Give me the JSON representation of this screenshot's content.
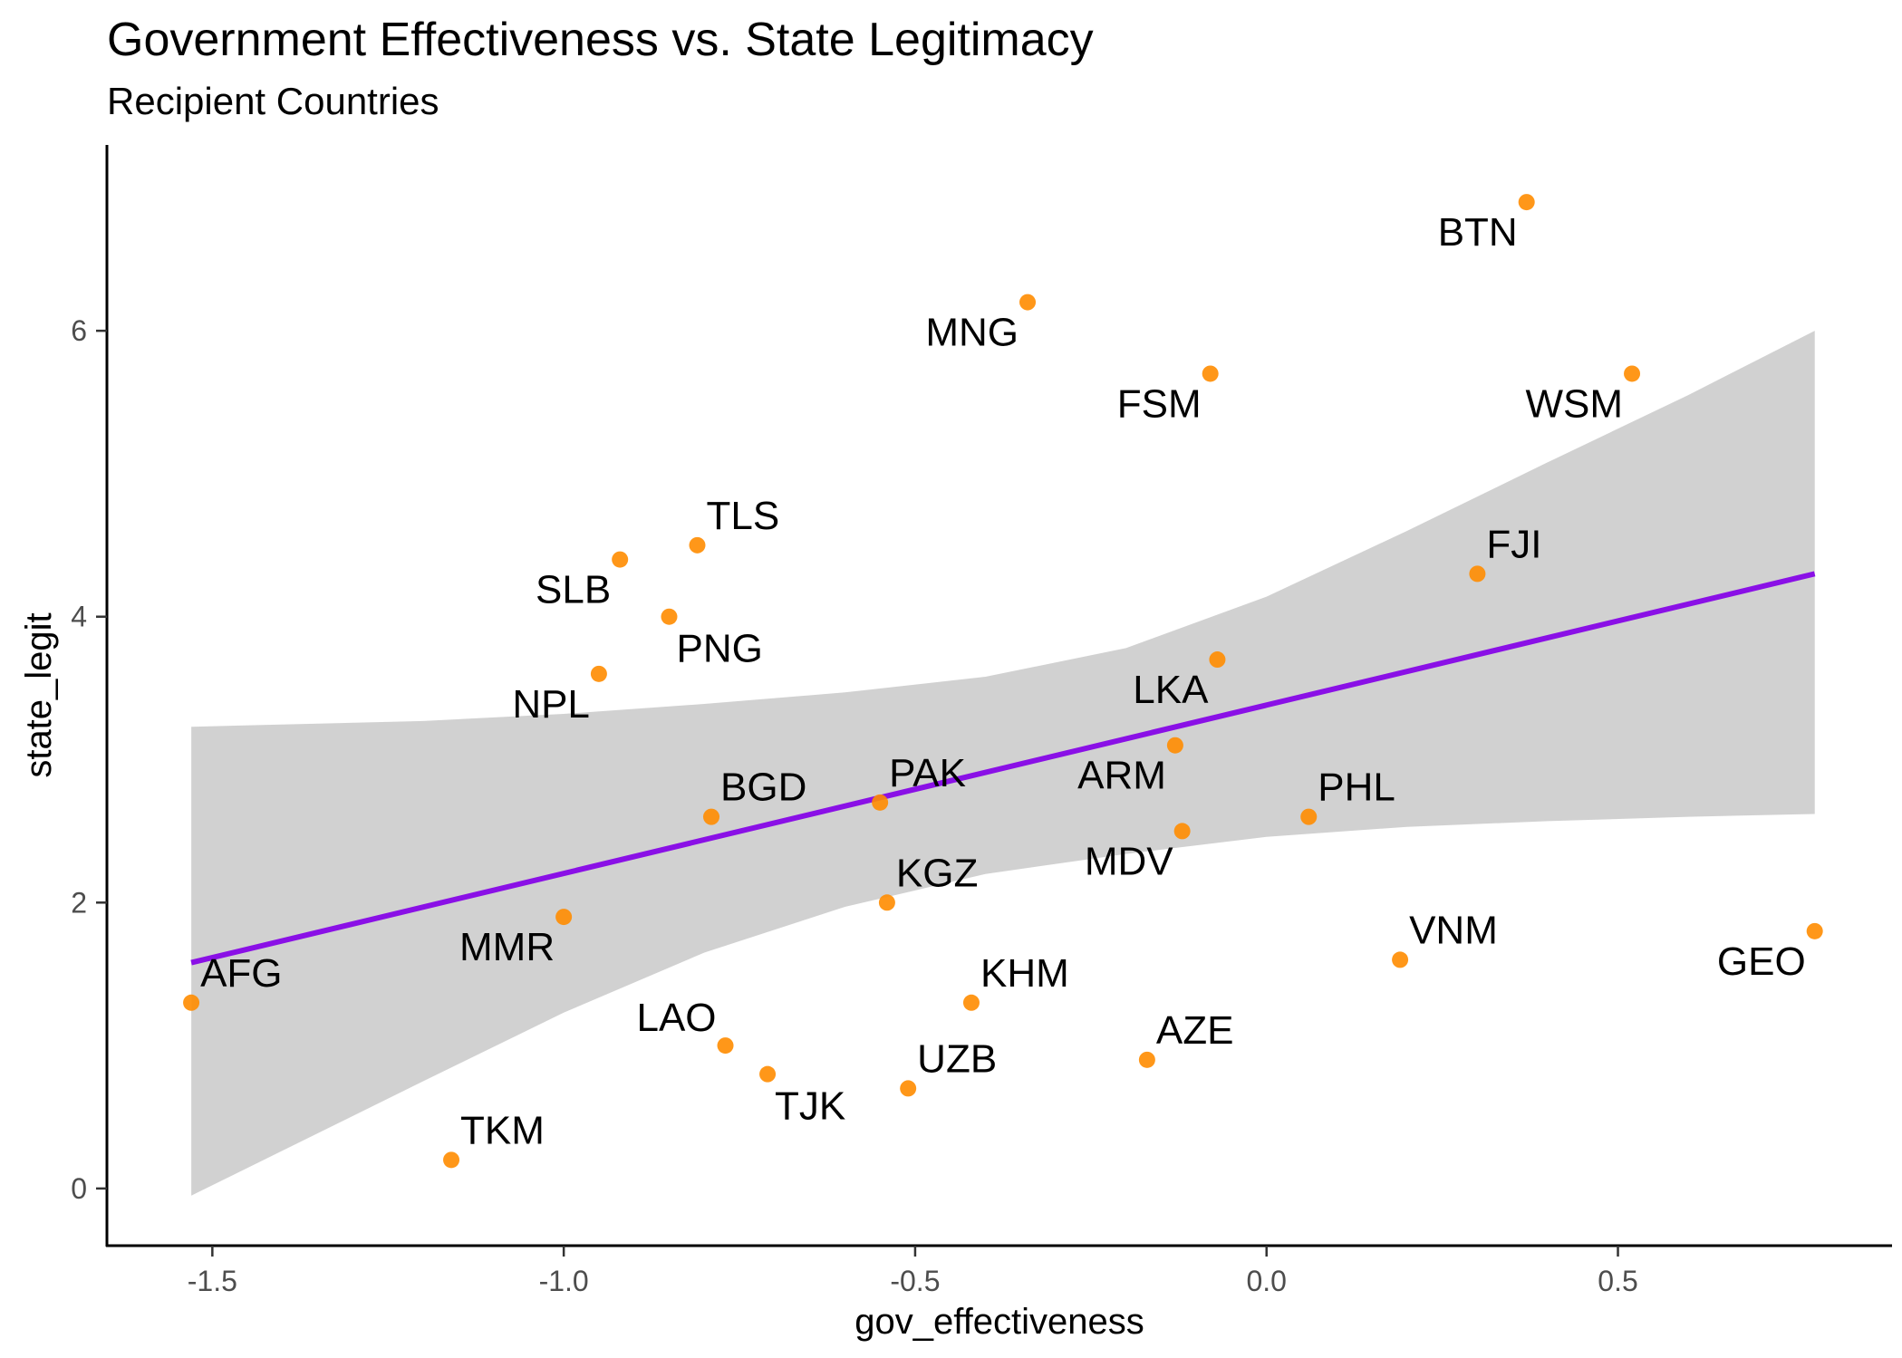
{
  "chart_data": {
    "type": "scatter",
    "title": "Government Effectiveness vs. State Legitimacy",
    "subtitle": "Recipient Countries",
    "xlabel": "gov_effectiveness",
    "ylabel": "state_legit",
    "xlim": [
      -1.65,
      0.89
    ],
    "ylim": [
      -0.4,
      7.3
    ],
    "x_ticks": [
      -1.5,
      -1.0,
      -0.5,
      0.0,
      0.5
    ],
    "x_tick_labels": [
      "-1.5",
      "-1.0",
      "-0.5",
      "0.0",
      "0.5"
    ],
    "y_ticks": [
      0,
      2,
      4,
      6
    ],
    "y_tick_labels": [
      "0",
      "2",
      "4",
      "6"
    ],
    "grid": false,
    "point_color": "#FF8C00",
    "fit_color": "#8A10E6",
    "band_color": "#BEBEBE",
    "points": [
      {
        "label": "BTN",
        "x": 0.37,
        "y": 6.9,
        "pos": "bl"
      },
      {
        "label": "MNG",
        "x": -0.34,
        "y": 6.2,
        "pos": "bl"
      },
      {
        "label": "FSM",
        "x": -0.08,
        "y": 5.7,
        "pos": "bl"
      },
      {
        "label": "WSM",
        "x": 0.52,
        "y": 5.7,
        "pos": "bl"
      },
      {
        "label": "TLS",
        "x": -0.81,
        "y": 4.5,
        "pos": "tr"
      },
      {
        "label": "SLB",
        "x": -0.92,
        "y": 4.4,
        "pos": "bl"
      },
      {
        "label": "FJI",
        "x": 0.3,
        "y": 4.3,
        "pos": "tr"
      },
      {
        "label": "PNG",
        "x": -0.85,
        "y": 4.0,
        "pos": "br"
      },
      {
        "label": "LKA",
        "x": -0.07,
        "y": 3.7,
        "pos": "bl"
      },
      {
        "label": "NPL",
        "x": -0.95,
        "y": 3.6,
        "pos": "bl"
      },
      {
        "label": "ARM",
        "x": -0.13,
        "y": 3.1,
        "pos": "bl"
      },
      {
        "label": "PAK",
        "x": -0.55,
        "y": 2.7,
        "pos": "tr"
      },
      {
        "label": "BGD",
        "x": -0.79,
        "y": 2.6,
        "pos": "tr"
      },
      {
        "label": "PHL",
        "x": 0.06,
        "y": 2.6,
        "pos": "tr"
      },
      {
        "label": "MDV",
        "x": -0.12,
        "y": 2.5,
        "pos": "bl"
      },
      {
        "label": "KGZ",
        "x": -0.54,
        "y": 2.0,
        "pos": "tr"
      },
      {
        "label": "MMR",
        "x": -1.0,
        "y": 1.9,
        "pos": "bl"
      },
      {
        "label": "GEO",
        "x": 0.78,
        "y": 1.8,
        "pos": "bl"
      },
      {
        "label": "VNM",
        "x": 0.19,
        "y": 1.6,
        "pos": "tr"
      },
      {
        "label": "AFG",
        "x": -1.53,
        "y": 1.3,
        "pos": "tr"
      },
      {
        "label": "KHM",
        "x": -0.42,
        "y": 1.3,
        "pos": "tr"
      },
      {
        "label": "LAO",
        "x": -0.77,
        "y": 1.0,
        "pos": "tl"
      },
      {
        "label": "AZE",
        "x": -0.17,
        "y": 0.9,
        "pos": "tr"
      },
      {
        "label": "TJK",
        "x": -0.71,
        "y": 0.8,
        "pos": "br"
      },
      {
        "label": "UZB",
        "x": -0.51,
        "y": 0.7,
        "pos": "tr"
      },
      {
        "label": "TKM",
        "x": -1.16,
        "y": 0.2,
        "pos": "tr"
      }
    ],
    "fit_line": {
      "x": [
        -1.53,
        0.78
      ],
      "y": [
        1.58,
        4.3
      ]
    },
    "confidence_band": {
      "x": [
        -1.53,
        -1.2,
        -1.0,
        -0.8,
        -0.6,
        -0.4,
        -0.2,
        0.0,
        0.2,
        0.4,
        0.6,
        0.78
      ],
      "upper": [
        3.23,
        3.27,
        3.32,
        3.39,
        3.47,
        3.58,
        3.78,
        4.14,
        4.6,
        5.08,
        5.55,
        6.0
      ],
      "lower": [
        -0.05,
        0.75,
        1.23,
        1.65,
        1.97,
        2.2,
        2.34,
        2.46,
        2.53,
        2.57,
        2.6,
        2.62
      ]
    }
  }
}
